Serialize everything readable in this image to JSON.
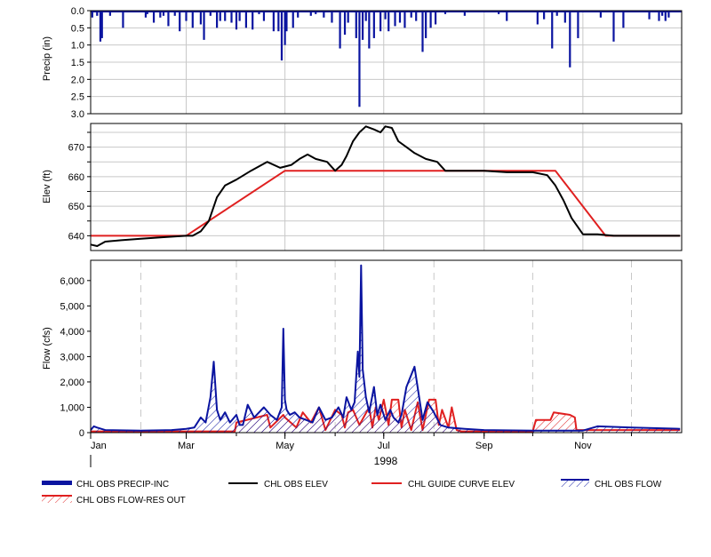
{
  "chart_data": [
    {
      "type": "bar",
      "panel": "precipitation",
      "ylabel": "Precip (in)",
      "ylim": [
        0,
        3.0
      ],
      "y_inverted": true,
      "yticks": [
        "0.0",
        "0.5",
        "1.0",
        "1.5",
        "2.0",
        "2.5",
        "3.0"
      ],
      "grid": true,
      "series": [
        {
          "name": "CHL OBS PRECIP-INC",
          "color": "#0a14a0",
          "x": [
            "1998-01-02",
            "1998-01-05",
            "1998-01-07",
            "1998-01-08",
            "1998-01-13",
            "1998-01-21",
            "1998-01-28",
            "1998-02-04",
            "1998-02-05",
            "1998-02-09",
            "1998-02-13",
            "1998-02-15",
            "1998-02-18",
            "1998-02-22",
            "1998-02-25",
            "1998-03-01",
            "1998-03-05",
            "1998-03-10",
            "1998-03-12",
            "1998-03-16",
            "1998-03-20",
            "1998-03-22",
            "1998-03-25",
            "1998-03-29",
            "1998-04-01",
            "1998-04-03",
            "1998-04-07",
            "1998-04-11",
            "1998-04-15",
            "1998-04-18",
            "1998-04-22",
            "1998-04-24",
            "1998-04-27",
            "1998-04-29",
            "1998-05-01",
            "1998-05-02",
            "1998-05-06",
            "1998-05-09",
            "1998-05-13",
            "1998-05-17",
            "1998-05-20",
            "1998-05-25",
            "1998-05-30",
            "1998-06-04",
            "1998-06-07",
            "1998-06-09",
            "1998-06-14",
            "1998-06-16",
            "1998-06-18",
            "1998-06-20",
            "1998-06-22",
            "1998-06-25",
            "1998-06-29",
            "1998-07-02",
            "1998-07-04",
            "1998-07-08",
            "1998-07-11",
            "1998-07-14",
            "1998-07-18",
            "1998-07-21",
            "1998-07-25",
            "1998-07-27",
            "1998-07-30",
            "1998-08-02",
            "1998-08-08",
            "1998-08-20",
            "1998-09-04",
            "1998-09-10",
            "1998-09-15",
            "1998-09-19",
            "1998-10-04",
            "1998-10-08",
            "1998-10-13",
            "1998-10-16",
            "1998-10-21",
            "1998-10-24",
            "1998-10-29",
            "1998-11-12",
            "1998-11-20",
            "1998-11-26",
            "1998-12-12",
            "1998-12-18",
            "1998-12-20",
            "1998-12-22",
            "1998-12-24"
          ],
          "values": [
            0.2,
            0.15,
            0.9,
            0.8,
            0.15,
            0.5,
            0.05,
            0.2,
            0.1,
            0.35,
            0.2,
            0.15,
            0.45,
            0.15,
            0.6,
            0.3,
            0.5,
            0.4,
            0.85,
            0.15,
            0.5,
            0.3,
            0.3,
            0.35,
            0.55,
            0.3,
            0.5,
            0.55,
            0.1,
            0.3,
            0.05,
            0.6,
            0.6,
            1.45,
            1.0,
            0.6,
            0.5,
            0.2,
            0.05,
            0.15,
            0.1,
            0.2,
            0.35,
            1.1,
            0.7,
            0.35,
            0.8,
            2.8,
            0.85,
            0.3,
            1.1,
            0.8,
            0.6,
            0.25,
            0.6,
            0.45,
            0.35,
            0.5,
            0.2,
            0.3,
            1.2,
            0.8,
            0.5,
            0.4,
            0.1,
            0.15,
            0.05,
            0.1,
            0.3,
            0.05,
            0.4,
            0.25,
            1.1,
            0.15,
            0.35,
            1.65,
            0.8,
            0.2,
            0.9,
            0.5,
            0.25,
            0.3,
            0.15,
            0.3,
            0.2
          ]
        }
      ]
    },
    {
      "type": "line",
      "panel": "elevation",
      "ylabel": "Elev (ft)",
      "ylim": [
        635,
        678
      ],
      "yticks": [
        "640",
        "650",
        "660",
        "670"
      ],
      "grid": true,
      "series": [
        {
          "name": "CHL OBS ELEV",
          "color": "#000000",
          "x": [
            "1998-01-01",
            "1998-01-05",
            "1998-01-10",
            "1998-01-20",
            "1998-02-01",
            "1998-02-15",
            "1998-03-01",
            "1998-03-05",
            "1998-03-10",
            "1998-03-15",
            "1998-03-20",
            "1998-03-25",
            "1998-04-01",
            "1998-04-10",
            "1998-04-20",
            "1998-04-28",
            "1998-05-05",
            "1998-05-10",
            "1998-05-15",
            "1998-05-20",
            "1998-05-27",
            "1998-06-01",
            "1998-06-05",
            "1998-06-08",
            "1998-06-12",
            "1998-06-16",
            "1998-06-20",
            "1998-06-25",
            "1998-06-29",
            "1998-07-02",
            "1998-07-06",
            "1998-07-10",
            "1998-07-15",
            "1998-07-20",
            "1998-07-27",
            "1998-08-03",
            "1998-08-08",
            "1998-08-15",
            "1998-09-01",
            "1998-09-15",
            "1998-10-01",
            "1998-10-10",
            "1998-10-15",
            "1998-10-20",
            "1998-10-25",
            "1998-11-01",
            "1998-11-10",
            "1998-11-20",
            "1998-12-01",
            "1998-12-31"
          ],
          "values": [
            637,
            636.5,
            638,
            638.5,
            639,
            639.5,
            640,
            640,
            641.5,
            645,
            653,
            657,
            659,
            662,
            665,
            663,
            664,
            666,
            667.5,
            666,
            665,
            662,
            664,
            667,
            672,
            675,
            677,
            676,
            675,
            677,
            676.5,
            672,
            670,
            668,
            666,
            665,
            662,
            662,
            662,
            661.5,
            661.5,
            660.5,
            657,
            652,
            646,
            640.5,
            640.5,
            640,
            640,
            640
          ]
        },
        {
          "name": "CHL GUIDE CURVE ELEV",
          "color": "#e02020",
          "x": [
            "1998-01-01",
            "1998-03-01",
            "1998-05-01",
            "1998-10-15",
            "1998-11-15",
            "1998-12-31"
          ],
          "values": [
            640,
            640,
            662,
            662,
            640,
            640
          ]
        }
      ]
    },
    {
      "type": "area",
      "panel": "flow",
      "xlabel": "1998",
      "ylabel": "Flow (cfs)",
      "ylim": [
        0,
        6800
      ],
      "yticks": [
        "0",
        "1,000",
        "2,000",
        "3,000",
        "4,000",
        "5,000",
        "6,000"
      ],
      "xticks": [
        "Jan",
        "Mar",
        "May",
        "Jul",
        "Sep",
        "Nov"
      ],
      "grid": true,
      "series": [
        {
          "name": "CHL OBS FLOW",
          "color": "#0a14a0",
          "x": [
            "1998-01-01",
            "1998-01-03",
            "1998-01-05",
            "1998-01-10",
            "1998-02-01",
            "1998-02-20",
            "1998-03-01",
            "1998-03-06",
            "1998-03-10",
            "1998-03-13",
            "1998-03-16",
            "1998-03-18",
            "1998-03-20",
            "1998-03-22",
            "1998-03-25",
            "1998-03-28",
            "1998-04-01",
            "1998-04-03",
            "1998-04-05",
            "1998-04-08",
            "1998-04-12",
            "1998-04-15",
            "1998-04-18",
            "1998-04-22",
            "1998-04-26",
            "1998-04-29",
            "1998-04-30",
            "1998-05-01",
            "1998-05-02",
            "1998-05-04",
            "1998-05-07",
            "1998-05-10",
            "1998-05-14",
            "1998-05-18",
            "1998-05-22",
            "1998-05-26",
            "1998-05-30",
            "1998-06-03",
            "1998-06-06",
            "1998-06-08",
            "1998-06-11",
            "1998-06-13",
            "1998-06-15",
            "1998-06-16",
            "1998-06-17",
            "1998-06-18",
            "1998-06-20",
            "1998-06-22",
            "1998-06-25",
            "1998-06-27",
            "1998-06-29",
            "1998-07-02",
            "1998-07-05",
            "1998-07-07",
            "1998-07-10",
            "1998-07-12",
            "1998-07-15",
            "1998-07-20",
            "1998-07-25",
            "1998-07-28",
            "1998-08-01",
            "1998-08-05",
            "1998-08-10",
            "1998-08-20",
            "1998-09-01",
            "1998-10-01",
            "1998-11-01",
            "1998-11-10",
            "1998-12-01",
            "1998-12-31"
          ],
          "values": [
            100,
            250,
            200,
            100,
            80,
            100,
            150,
            200,
            600,
            400,
            1400,
            2800,
            900,
            500,
            800,
            400,
            700,
            300,
            300,
            1100,
            600,
            800,
            1000,
            700,
            500,
            1000,
            4100,
            1300,
            900,
            700,
            800,
            600,
            500,
            400,
            1000,
            500,
            600,
            1000,
            600,
            1400,
            900,
            1200,
            3200,
            2200,
            6600,
            2500,
            1400,
            800,
            1800,
            700,
            1100,
            500,
            900,
            600,
            400,
            700,
            1800,
            2600,
            500,
            1200,
            800,
            300,
            200,
            150,
            100,
            80,
            80,
            250,
            200,
            150
          ]
        },
        {
          "name": "CHL OBS FLOW-RES OUT",
          "color": "#e02020",
          "x": [
            "1998-01-01",
            "1998-03-31",
            "1998-04-01",
            "1998-04-20",
            "1998-04-22",
            "1998-04-30",
            "1998-05-01",
            "1998-05-08",
            "1998-05-12",
            "1998-05-17",
            "1998-05-22",
            "1998-05-26",
            "1998-06-01",
            "1998-06-05",
            "1998-06-07",
            "1998-06-09",
            "1998-06-12",
            "1998-06-16",
            "1998-06-22",
            "1998-06-24",
            "1998-06-26",
            "1998-06-28",
            "1998-07-01",
            "1998-07-04",
            "1998-07-06",
            "1998-07-10",
            "1998-07-12",
            "1998-07-14",
            "1998-07-18",
            "1998-07-22",
            "1998-07-25",
            "1998-07-29",
            "1998-08-02",
            "1998-08-04",
            "1998-08-06",
            "1998-08-10",
            "1998-08-12",
            "1998-08-15",
            "1998-08-18",
            "1998-09-01",
            "1998-10-01",
            "1998-10-03",
            "1998-10-12",
            "1998-10-14",
            "1998-10-24",
            "1998-10-27",
            "1998-10-28",
            "1998-12-31"
          ],
          "values": [
            50,
            50,
            400,
            700,
            200,
            700,
            600,
            200,
            800,
            400,
            1000,
            100,
            900,
            700,
            200,
            800,
            900,
            300,
            1000,
            200,
            1000,
            500,
            1300,
            300,
            1300,
            1300,
            200,
            900,
            100,
            1200,
            100,
            1300,
            1300,
            300,
            900,
            200,
            1000,
            100,
            50,
            50,
            50,
            500,
            500,
            800,
            700,
            600,
            100,
            100
          ]
        }
      ]
    }
  ],
  "legend": [
    {
      "label": "CHL OBS PRECIP-INC",
      "color": "#0a14a0",
      "style": "thick-bar"
    },
    {
      "label": "CHL OBS ELEV",
      "color": "#000000",
      "style": "line"
    },
    {
      "label": "CHL GUIDE CURVE ELEV",
      "color": "#e02020",
      "style": "line"
    },
    {
      "label": "CHL OBS FLOW",
      "color": "#0a14a0",
      "style": "hatched"
    },
    {
      "label": "CHL OBS FLOW-RES OUT",
      "color": "#e02020",
      "style": "hatched"
    }
  ],
  "colors": {
    "grid": "#c8c8c8",
    "axis": "#000000",
    "background": "#ffffff"
  }
}
